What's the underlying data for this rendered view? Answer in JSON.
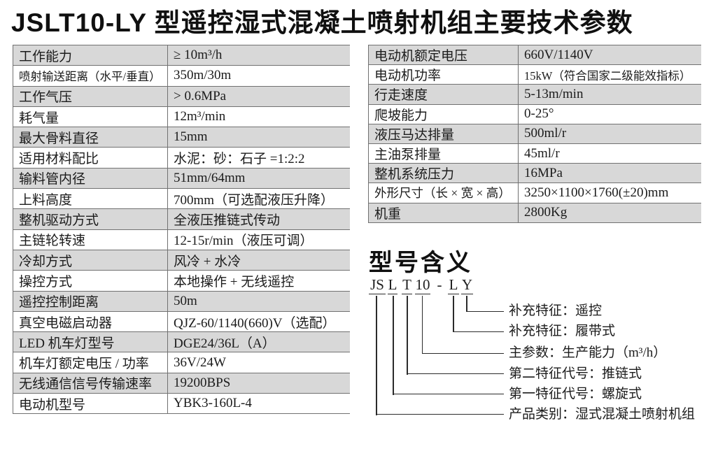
{
  "title": "JSLT10-LY 型遥控湿式混凝土喷射机组主要技术参数",
  "left_table": {
    "rows": [
      {
        "label": "工作能力",
        "value": "≥ 10m³/h"
      },
      {
        "label": "喷射输送距离（水平/垂直）",
        "value": "350m/30m"
      },
      {
        "label": "工作气压",
        "value": "> 0.6MPa"
      },
      {
        "label": "耗气量",
        "value": "12m³/min"
      },
      {
        "label": "最大骨料直径",
        "value": "15mm"
      },
      {
        "label": "适用材料配比",
        "value": "水泥：砂：石子 =1:2:2"
      },
      {
        "label": "输料管内径",
        "value": "51mm/64mm"
      },
      {
        "label": "上料高度",
        "value": "700mm（可选配液压升降）"
      },
      {
        "label": "整机驱动方式",
        "value": "全液压推链式传动"
      },
      {
        "label": "主链轮转速",
        "value": "12-15r/min（液压可调）"
      },
      {
        "label": "冷却方式",
        "value": "风冷 + 水冷"
      },
      {
        "label": "操控方式",
        "value": "本地操作 + 无线遥控"
      },
      {
        "label": "遥控控制距离",
        "value": "50m"
      },
      {
        "label": "真空电磁启动器",
        "value": "QJZ-60/1140(660)V（选配）"
      },
      {
        "label": "LED 机车灯型号",
        "value": "DGE24/36L（A）"
      },
      {
        "label": "机车灯额定电压 / 功率",
        "value": "36V/24W"
      },
      {
        "label": "无线通信信号传输速率",
        "value": "19200BPS"
      },
      {
        "label": "电动机型号",
        "value": "YBK3-160L-4"
      }
    ]
  },
  "right_table": {
    "rows": [
      {
        "label": "电动机额定电压",
        "value": "660V/1140V"
      },
      {
        "label": "电动机功率",
        "value": "15kW（符合国家二级能效指标）"
      },
      {
        "label": "行走速度",
        "value": "5-13m/min"
      },
      {
        "label": "爬坡能力",
        "value": "0-25°"
      },
      {
        "label": "液压马达排量",
        "value": "500ml/r"
      },
      {
        "label": "主油泵排量",
        "value": "45ml/r"
      },
      {
        "label": "整机系统压力",
        "value": "16MPa"
      },
      {
        "label": "外形尺寸（长 × 宽 × 高）",
        "value": "3250×1100×1760(±20)mm"
      },
      {
        "label": "机重",
        "value": "2800Kg"
      }
    ]
  },
  "model_section": {
    "heading": "型号含义",
    "code_parts": [
      "JS",
      "L",
      "T",
      "10",
      "-",
      "L",
      "Y"
    ],
    "legend": [
      {
        "part": "Y",
        "label": "补充特征：遥控"
      },
      {
        "part": "L",
        "label": "补充特征：履带式"
      },
      {
        "part": "10",
        "label": "主参数：生产能力（m³/h）"
      },
      {
        "part": "T",
        "label": "第二特征代号：推链式"
      },
      {
        "part": "L",
        "label": "第一特征代号：螺旋式"
      },
      {
        "part": "JS",
        "label": "产品类别：湿式混凝土喷射机组"
      }
    ]
  },
  "colors": {
    "row_shade": "#d8d8d8",
    "table_border": "#717171",
    "diagram_line": "#2b2b2b",
    "text": "#1b1b1b"
  }
}
